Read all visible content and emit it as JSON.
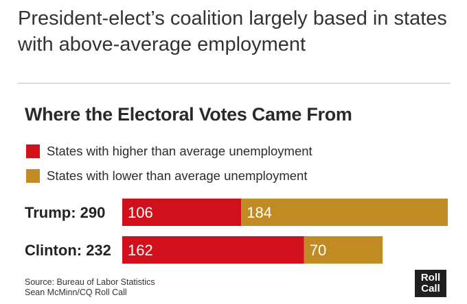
{
  "headline": "President-elect’s coalition largely based in states with above-average employment",
  "chart_data": {
    "type": "bar",
    "orientation": "horizontal",
    "stacked": true,
    "title": "Where the Electoral Votes Came From",
    "categories": [
      "Trump",
      "Clinton"
    ],
    "row_labels": [
      "Trump: 290",
      "Clinton: 232"
    ],
    "totals": [
      290,
      232
    ],
    "series": [
      {
        "name": "States with higher than average unemployment",
        "color": "#d0101a",
        "values": [
          106,
          162
        ]
      },
      {
        "name": "States with lower than average unemployment",
        "color": "#c08b22",
        "values": [
          184,
          70
        ]
      }
    ],
    "xlim": [
      0,
      290
    ],
    "legend_position": "top-left",
    "grid": false
  },
  "source": {
    "line1": "Source: Bureau of Labor Statistics",
    "line2": "Sean McMinn/CQ Roll Call"
  },
  "logo": {
    "line1": "Roll",
    "line2": "Call"
  }
}
